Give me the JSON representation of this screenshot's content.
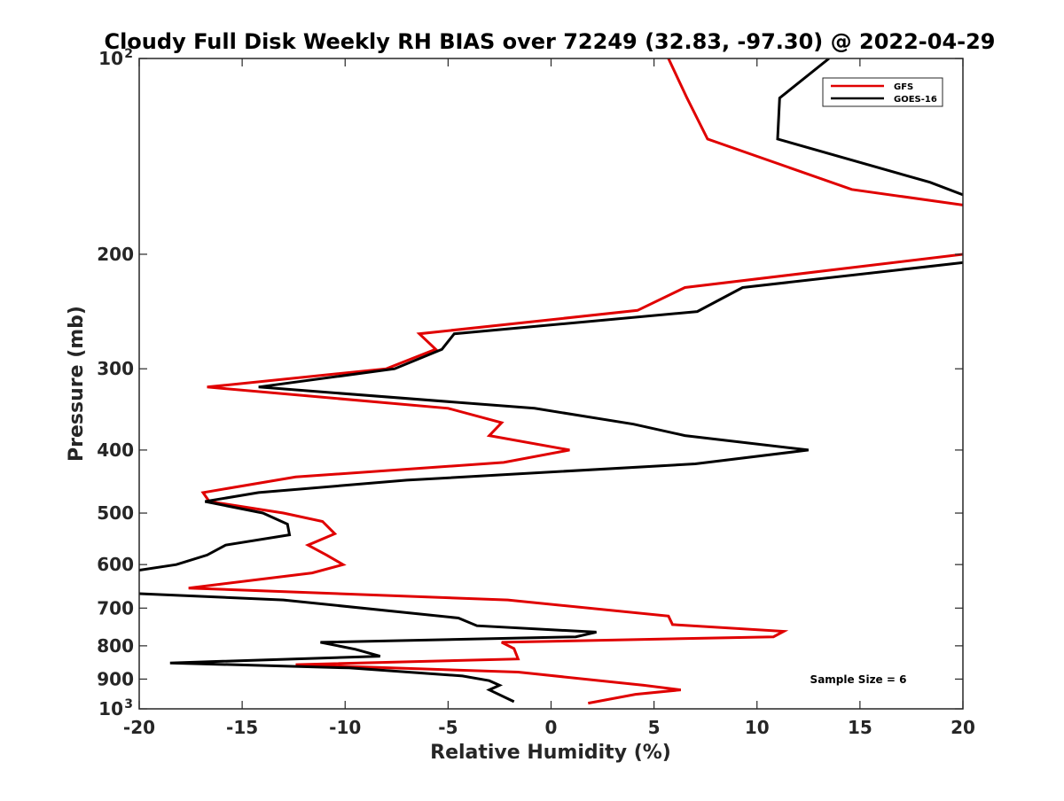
{
  "chart_data": {
    "type": "line",
    "title": "Cloudy Full Disk Weekly RH BIAS over 72249 (32.83, -97.30) @ 2022-04-29",
    "xlabel": "Relative Humidity (%)",
    "ylabel": "Pressure (mb)",
    "xlim": [
      -20,
      20
    ],
    "ylim": [
      100,
      1000
    ],
    "y_scale": "log",
    "y_direction": "reversed",
    "grid": false,
    "x_ticks": [
      -20,
      -15,
      -10,
      -5,
      0,
      5,
      10,
      15,
      20
    ],
    "y_ticks": [
      100,
      200,
      300,
      400,
      500,
      600,
      700,
      800,
      900,
      1000
    ],
    "y_tick_labels": [
      {
        "value": 100,
        "base": "10",
        "exp": "2"
      },
      {
        "value": 200,
        "base": "200",
        "exp": ""
      },
      {
        "value": 300,
        "base": "300",
        "exp": ""
      },
      {
        "value": 400,
        "base": "400",
        "exp": ""
      },
      {
        "value": 500,
        "base": "500",
        "exp": ""
      },
      {
        "value": 600,
        "base": "600",
        "exp": ""
      },
      {
        "value": 700,
        "base": "700",
        "exp": ""
      },
      {
        "value": 800,
        "base": "800",
        "exp": ""
      },
      {
        "value": 900,
        "base": "900",
        "exp": ""
      },
      {
        "value": 1000,
        "base": "10",
        "exp": "3"
      }
    ],
    "legend_position": "top-right",
    "annotation": "Sample Size = 6",
    "series": [
      {
        "name": "GFS",
        "color": "#e00000",
        "points": [
          [
            5.7,
            100
          ],
          [
            6.6,
            115
          ],
          [
            7.6,
            133
          ],
          [
            14.6,
            159
          ],
          [
            20.0,
            168
          ],
          [
            null,
            null
          ],
          [
            20.0,
            200
          ],
          [
            6.5,
            225
          ],
          [
            4.2,
            244
          ],
          [
            -6.4,
            265
          ],
          [
            -5.6,
            280
          ],
          [
            -8.0,
            300
          ],
          [
            -16.7,
            320
          ],
          [
            -5.0,
            345
          ],
          [
            -2.4,
            363
          ],
          [
            -3.0,
            380
          ],
          [
            0.9,
            400
          ],
          [
            -2.3,
            418
          ],
          [
            -12.4,
            440
          ],
          [
            -16.9,
            465
          ],
          [
            -16.6,
            480
          ],
          [
            -13.0,
            500
          ],
          [
            -11.1,
            515
          ],
          [
            -10.5,
            538
          ],
          [
            -11.8,
            560
          ],
          [
            -10.9,
            580
          ],
          [
            -10.1,
            600
          ],
          [
            -11.6,
            618
          ],
          [
            -17.6,
            652
          ],
          [
            -2.1,
            680
          ],
          [
            5.7,
            720
          ],
          [
            5.9,
            742
          ],
          [
            11.3,
            760
          ],
          [
            10.8,
            775
          ],
          [
            -2.4,
            790
          ],
          [
            -1.8,
            808
          ],
          [
            -1.6,
            838
          ],
          [
            -12.4,
            855
          ],
          [
            -1.6,
            878
          ],
          [
            4.5,
            920
          ],
          [
            6.3,
            935
          ],
          [
            4.1,
            950
          ],
          [
            1.8,
            980
          ]
        ]
      },
      {
        "name": "GOES-16",
        "color": "#000000",
        "points": [
          [
            13.5,
            100
          ],
          [
            11.1,
            115
          ],
          [
            11.0,
            133
          ],
          [
            18.4,
            155
          ],
          [
            20.0,
            162
          ],
          [
            null,
            null
          ],
          [
            20.0,
            206
          ],
          [
            9.3,
            225
          ],
          [
            7.1,
            245
          ],
          [
            -4.7,
            265
          ],
          [
            -5.3,
            280
          ],
          [
            -7.6,
            300
          ],
          [
            -14.2,
            320
          ],
          [
            -0.8,
            345
          ],
          [
            4.0,
            365
          ],
          [
            6.5,
            380
          ],
          [
            12.5,
            400
          ],
          [
            7.0,
            420
          ],
          [
            -7.0,
            445
          ],
          [
            -14.2,
            465
          ],
          [
            -16.8,
            480
          ],
          [
            -14.0,
            500
          ],
          [
            -12.8,
            520
          ],
          [
            -12.7,
            540
          ],
          [
            -15.8,
            560
          ],
          [
            -16.7,
            580
          ],
          [
            -18.2,
            600
          ],
          [
            -20.0,
            612
          ],
          [
            null,
            null
          ],
          [
            -20.0,
            665
          ],
          [
            -13.0,
            680
          ],
          [
            -4.5,
            725
          ],
          [
            -3.6,
            745
          ],
          [
            2.2,
            762
          ],
          [
            1.2,
            775
          ],
          [
            -11.2,
            790
          ],
          [
            -9.5,
            810
          ],
          [
            -8.3,
            830
          ],
          [
            -18.5,
            850
          ],
          [
            -9.8,
            865
          ],
          [
            -4.3,
            890
          ],
          [
            -3.0,
            905
          ],
          [
            -2.5,
            920
          ],
          [
            -3.0,
            935
          ],
          [
            -1.8,
            975
          ]
        ]
      }
    ]
  }
}
